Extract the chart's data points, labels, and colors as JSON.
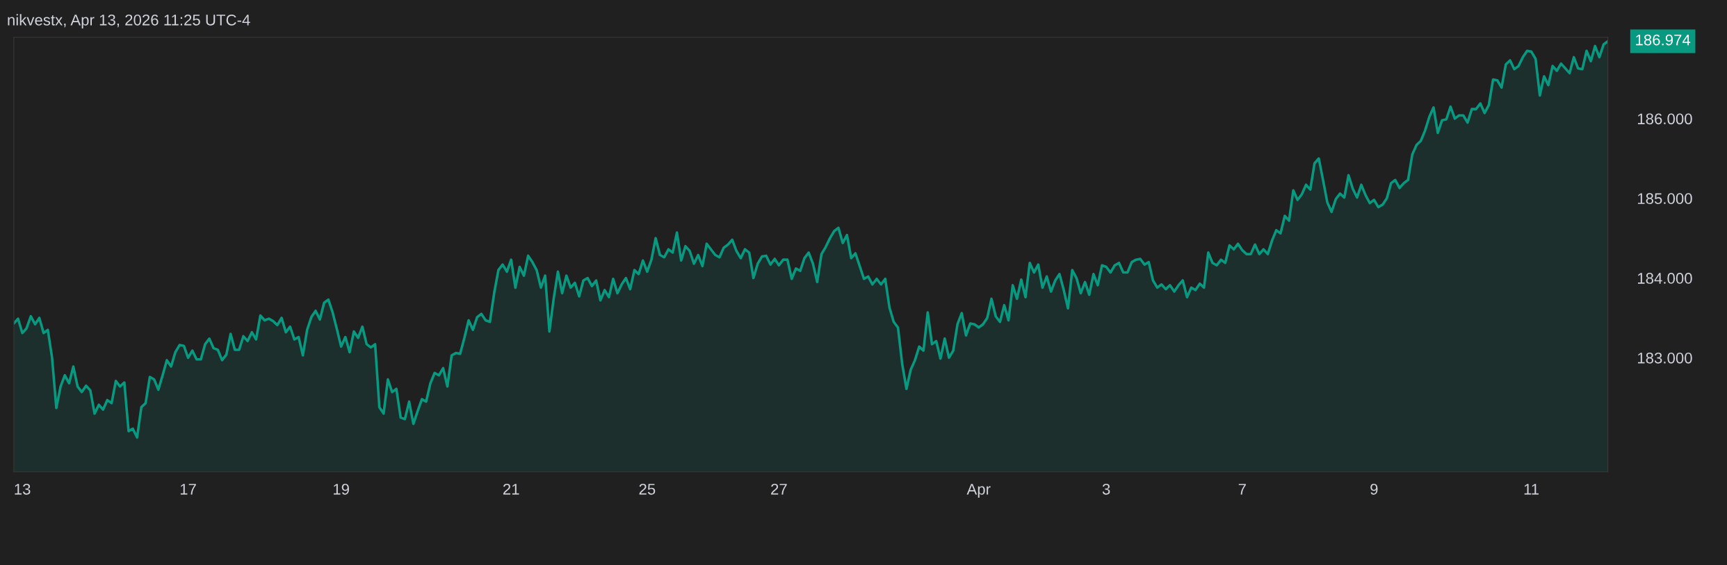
{
  "chart_data": {
    "type": "area",
    "title": "nikvestx, Apr 13, 2026 11:25 UTC-4",
    "ylim": [
      181.57,
      187.02
    ],
    "yticks": [
      {
        "value": 183,
        "label": "183.000"
      },
      {
        "value": 184,
        "label": "184.000"
      },
      {
        "value": 185,
        "label": "185.000"
      },
      {
        "value": 186,
        "label": "186.000"
      }
    ],
    "grid": false,
    "legend": false,
    "annotations": [
      "186.974"
    ],
    "categories": [
      null,
      null,
      "13",
      null,
      null,
      null,
      null,
      null,
      null,
      null,
      null,
      null,
      null,
      null,
      null,
      null,
      null,
      null,
      null,
      null,
      null,
      null,
      null,
      null,
      null,
      null,
      null,
      null,
      null,
      null,
      null,
      null,
      null,
      null,
      null,
      null,
      null,
      null,
      null,
      null,
      null,
      "17",
      null,
      null,
      null,
      null,
      null,
      null,
      null,
      null,
      null,
      null,
      null,
      null,
      null,
      null,
      null,
      null,
      null,
      null,
      null,
      null,
      null,
      null,
      null,
      null,
      null,
      null,
      null,
      null,
      null,
      null,
      null,
      null,
      null,
      null,
      null,
      "19",
      null,
      null,
      null,
      null,
      null,
      null,
      null,
      null,
      null,
      null,
      null,
      null,
      null,
      null,
      null,
      null,
      null,
      null,
      null,
      null,
      null,
      null,
      null,
      null,
      null,
      null,
      null,
      null,
      null,
      null,
      null,
      null,
      null,
      null,
      null,
      null,
      null,
      null,
      null,
      "21",
      null,
      null,
      null,
      null,
      null,
      null,
      null,
      null,
      null,
      null,
      null,
      null,
      null,
      null,
      null,
      null,
      null,
      null,
      null,
      null,
      null,
      null,
      null,
      null,
      null,
      null,
      null,
      null,
      null,
      null,
      null,
      "25",
      null,
      null,
      null,
      null,
      null,
      null,
      null,
      null,
      null,
      null,
      null,
      null,
      null,
      null,
      null,
      null,
      null,
      null,
      null,
      null,
      null,
      null,
      null,
      null,
      null,
      null,
      null,
      null,
      null,
      null,
      "27",
      null,
      null,
      null,
      null,
      null,
      null,
      null,
      null,
      null,
      null,
      null,
      null,
      null,
      null,
      null,
      null,
      null,
      null,
      null,
      null,
      null,
      null,
      null,
      null,
      null,
      null,
      null,
      null,
      null,
      null,
      null,
      null,
      null,
      null,
      null,
      null,
      null,
      null,
      null,
      null,
      null,
      null,
      null,
      null,
      null,
      null,
      "Apr",
      null,
      null,
      null,
      null,
      null,
      null,
      null,
      null,
      null,
      null,
      null,
      null,
      null,
      null,
      null,
      null,
      null,
      null,
      null,
      null,
      null,
      null,
      null,
      null,
      null,
      null,
      null,
      null,
      null,
      "3",
      null,
      null,
      null,
      null,
      null,
      null,
      null,
      null,
      null,
      null,
      null,
      null,
      null,
      null,
      null,
      null,
      null,
      null,
      null,
      null,
      null,
      null,
      null,
      null,
      null,
      null,
      null,
      null,
      null,
      null,
      null,
      "7",
      null,
      null,
      null,
      null,
      null,
      null,
      null,
      null,
      null,
      null,
      null,
      null,
      null,
      null,
      null,
      null,
      null,
      null,
      null,
      null,
      null,
      null,
      null,
      null,
      null,
      null,
      null,
      null,
      null,
      null,
      "9",
      null,
      null,
      null,
      null,
      null,
      null,
      null,
      null,
      null,
      null,
      null,
      null,
      null,
      null,
      null,
      null,
      null,
      null,
      null,
      null,
      null,
      null,
      null,
      null,
      null,
      null,
      null,
      null,
      null,
      null,
      null,
      null,
      null,
      null,
      null,
      null,
      "11",
      null,
      null,
      null,
      null,
      null,
      null,
      null,
      null,
      null,
      null,
      null,
      null,
      null,
      null,
      null,
      null,
      null,
      null
    ],
    "series": [
      {
        "color": "#089981",
        "values": [
          183.43,
          183.49,
          183.31,
          183.37,
          183.52,
          183.42,
          183.5,
          183.31,
          183.35,
          183.0,
          182.37,
          182.64,
          182.78,
          182.68,
          182.89,
          182.64,
          182.57,
          182.65,
          182.59,
          182.3,
          182.41,
          182.35,
          182.47,
          182.43,
          182.71,
          182.64,
          182.69,
          182.08,
          182.11,
          182.0,
          182.38,
          182.43,
          182.76,
          182.73,
          182.6,
          182.78,
          182.97,
          182.89,
          183.07,
          183.16,
          183.15,
          183.0,
          183.09,
          182.98,
          182.98,
          183.17,
          183.24,
          183.12,
          183.1,
          182.97,
          183.04,
          183.3,
          183.1,
          183.1,
          183.27,
          183.21,
          183.32,
          183.23,
          183.53,
          183.47,
          183.49,
          183.46,
          183.41,
          183.5,
          183.32,
          183.39,
          183.23,
          183.26,
          183.03,
          183.35,
          183.51,
          183.59,
          183.48,
          183.69,
          183.73,
          183.57,
          183.36,
          183.14,
          183.26,
          183.07,
          183.33,
          183.25,
          183.39,
          183.17,
          183.13,
          183.17,
          182.38,
          182.3,
          182.73,
          182.57,
          182.61,
          182.25,
          182.23,
          182.45,
          182.17,
          182.33,
          182.48,
          182.45,
          182.68,
          182.81,
          182.78,
          182.87,
          182.64,
          183.03,
          183.06,
          183.05,
          183.25,
          183.47,
          183.35,
          183.51,
          183.55,
          183.47,
          183.45,
          183.81,
          184.1,
          184.17,
          184.08,
          184.23,
          183.88,
          184.14,
          184.03,
          184.28,
          184.2,
          184.1,
          183.88,
          184.03,
          183.33,
          183.74,
          184.08,
          183.81,
          184.03,
          183.88,
          183.94,
          183.77,
          183.97,
          184.0,
          183.9,
          183.97,
          183.72,
          183.85,
          183.76,
          183.99,
          183.81,
          183.92,
          184.0,
          183.86,
          184.1,
          184.05,
          184.22,
          184.08,
          184.23,
          184.5,
          184.29,
          184.26,
          184.36,
          184.32,
          184.57,
          184.22,
          184.4,
          184.34,
          184.18,
          184.29,
          184.15,
          184.43,
          184.36,
          184.29,
          184.26,
          184.38,
          184.42,
          184.48,
          184.34,
          184.25,
          184.36,
          184.32,
          184.0,
          184.18,
          184.27,
          184.28,
          184.17,
          184.24,
          184.16,
          184.23,
          184.23,
          183.99,
          184.12,
          184.09,
          184.25,
          184.32,
          184.18,
          183.95,
          184.3,
          184.39,
          184.5,
          184.59,
          184.63,
          184.44,
          184.54,
          184.25,
          184.31,
          184.15,
          183.99,
          184.02,
          183.92,
          183.99,
          183.92,
          183.99,
          183.63,
          183.45,
          183.38,
          182.92,
          182.61,
          182.85,
          182.97,
          183.14,
          183.09,
          183.57,
          183.17,
          183.21,
          182.99,
          183.24,
          183.0,
          183.09,
          183.42,
          183.56,
          183.28,
          183.43,
          183.42,
          183.38,
          183.42,
          183.5,
          183.74,
          183.52,
          183.45,
          183.66,
          183.47,
          183.91,
          183.74,
          183.98,
          183.76,
          184.19,
          184.07,
          184.17,
          183.88,
          184.02,
          183.83,
          183.97,
          184.05,
          183.85,
          183.62,
          184.1,
          184.0,
          183.81,
          183.95,
          183.79,
          184.05,
          183.91,
          184.16,
          184.14,
          184.07,
          184.16,
          184.19,
          184.07,
          184.07,
          184.2,
          184.23,
          184.24,
          184.17,
          184.2,
          183.97,
          183.88,
          183.92,
          183.86,
          183.91,
          183.83,
          183.91,
          183.97,
          183.76,
          183.88,
          183.85,
          183.93,
          183.88,
          184.32,
          184.19,
          184.16,
          184.23,
          184.19,
          184.41,
          184.36,
          184.43,
          184.35,
          184.3,
          184.3,
          184.42,
          184.3,
          184.36,
          184.3,
          184.47,
          184.6,
          184.56,
          184.78,
          184.72,
          185.1,
          184.98,
          185.05,
          185.17,
          185.11,
          185.44,
          185.5,
          185.23,
          184.95,
          184.83,
          184.99,
          185.06,
          185.01,
          185.29,
          185.12,
          185.01,
          185.17,
          185.04,
          184.94,
          184.98,
          184.89,
          184.92,
          185.0,
          185.19,
          185.23,
          185.13,
          185.19,
          185.23,
          185.55,
          185.67,
          185.72,
          185.85,
          186.02,
          186.14,
          185.82,
          185.98,
          185.99,
          186.15,
          186.0,
          186.04,
          186.04,
          185.95,
          186.12,
          186.12,
          186.19,
          186.07,
          186.17,
          186.49,
          186.48,
          186.39,
          186.68,
          186.73,
          186.62,
          186.66,
          186.77,
          186.85,
          186.84,
          186.75,
          186.29,
          186.53,
          186.42,
          186.66,
          186.6,
          186.69,
          186.63,
          186.57,
          186.77,
          186.63,
          186.62,
          186.85,
          186.72,
          186.91,
          186.77,
          186.93,
          186.97
        ]
      }
    ]
  }
}
